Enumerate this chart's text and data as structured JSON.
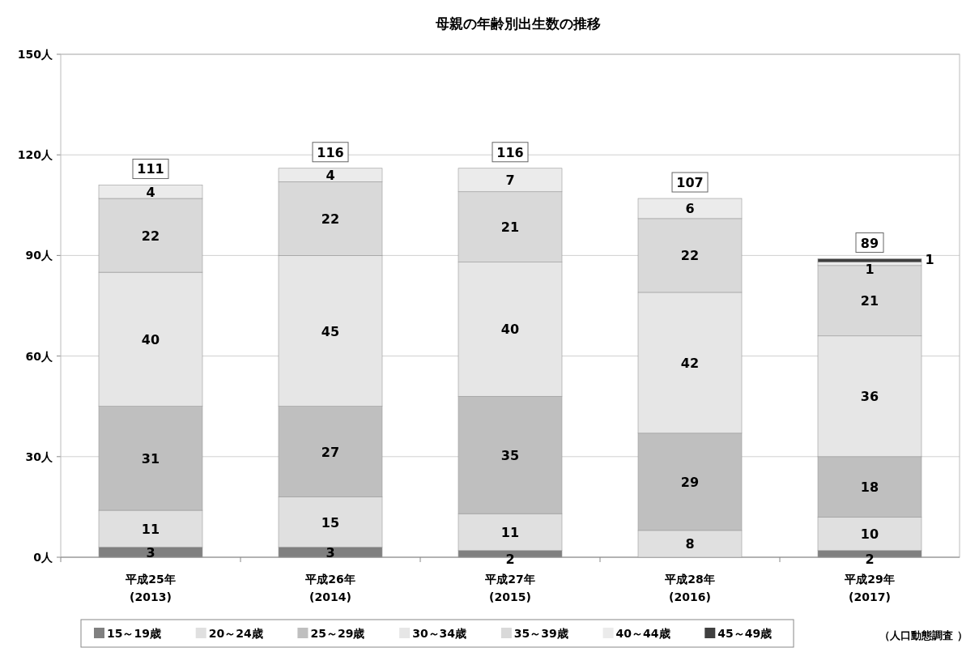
{
  "chart_data": {
    "type": "bar",
    "stacked": true,
    "title": "母親の年齢別出生数の推移",
    "categories": [
      "平成25年\n(2013)",
      "平成26年\n(2014)",
      "平成27年\n(2015)",
      "平成28年\n(2016)",
      "平成29年\n(2017)"
    ],
    "series": [
      {
        "name": "15～19歳",
        "color": "#808080",
        "values": [
          3,
          3,
          2,
          null,
          2
        ]
      },
      {
        "name": "20～24歳",
        "color": "#e0e0e0",
        "values": [
          11,
          15,
          11,
          8,
          10
        ]
      },
      {
        "name": "25～29歳",
        "color": "#bfbfbf",
        "values": [
          31,
          27,
          35,
          29,
          18
        ]
      },
      {
        "name": "30～34歳",
        "color": "#e6e6e6",
        "values": [
          40,
          45,
          40,
          42,
          36
        ]
      },
      {
        "name": "35～39歳",
        "color": "#d9d9d9",
        "values": [
          22,
          22,
          21,
          22,
          21
        ]
      },
      {
        "name": "40～44歳",
        "color": "#ebebeb",
        "values": [
          4,
          4,
          7,
          6,
          1
        ]
      },
      {
        "name": "45～49歳",
        "color": "#404040",
        "values": [
          null,
          null,
          null,
          null,
          1
        ]
      }
    ],
    "ylim": [
      0,
      150
    ],
    "yticks": [
      {
        "value": 0,
        "label": "0人"
      },
      {
        "value": 30,
        "label": "30人"
      },
      {
        "value": 60,
        "label": "60人"
      },
      {
        "value": 90,
        "label": "90人"
      },
      {
        "value": 120,
        "label": "120人"
      },
      {
        "value": 150,
        "label": "150人"
      }
    ],
    "grid": "y",
    "data_labels": true,
    "totals": [
      "111",
      "116",
      "116",
      "107",
      "89"
    ],
    "legend": "bottom",
    "annotations": [
      "（人口動態調査 ）"
    ]
  }
}
